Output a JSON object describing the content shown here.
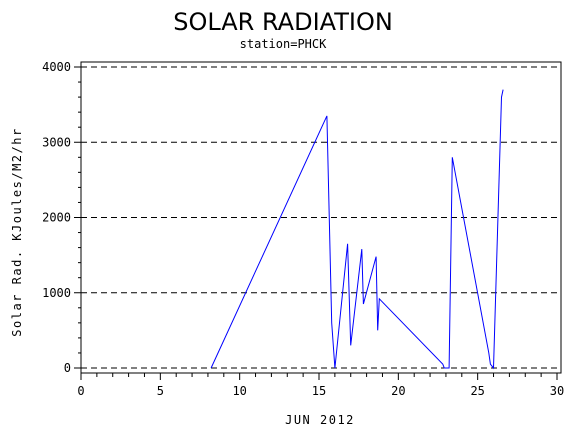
{
  "chart_data": {
    "type": "line",
    "title": "SOLAR RADIATION",
    "subtitle": "station=PHCK",
    "xlabel": "JUN 2012",
    "ylabel": "Solar Rad. KJoules/M2/hr",
    "xlim": [
      0,
      30
    ],
    "ylim": [
      0,
      4000
    ],
    "xticks": [
      0,
      5,
      10,
      15,
      20,
      25,
      30
    ],
    "yticks": [
      0,
      1000,
      2000,
      3000,
      4000
    ],
    "grid": "horizontal-dashed",
    "legend": "none",
    "series": [
      {
        "color": "#0000ff",
        "x": [
          8.2,
          15.5,
          15.8,
          16.0,
          16.8,
          17.0,
          17.7,
          17.8,
          18.6,
          18.7,
          18.8,
          22.8,
          22.9,
          23.2,
          23.4,
          25.7,
          25.8,
          26.0,
          26.5,
          26.6
        ],
        "y": [
          0,
          3350,
          600,
          0,
          1650,
          300,
          1580,
          850,
          1480,
          500,
          920,
          50,
          0,
          0,
          2800,
          200,
          50,
          0,
          3600,
          3700
        ]
      }
    ]
  }
}
